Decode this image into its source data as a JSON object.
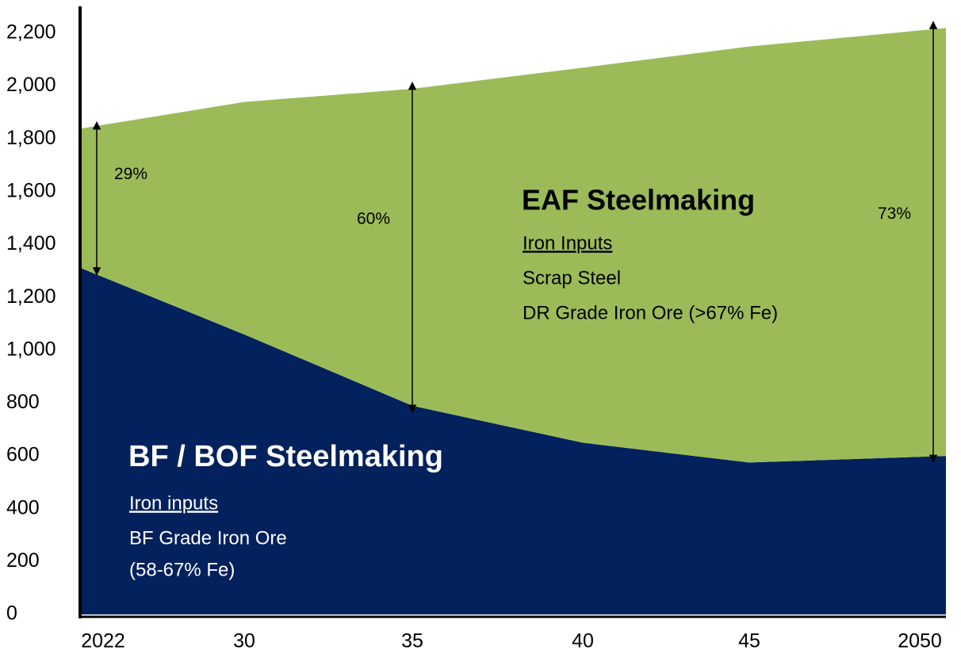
{
  "chart_data": {
    "type": "stacked_area",
    "x": [
      2022,
      2030,
      2035,
      2040,
      2045,
      2050
    ],
    "series": [
      {
        "name": "BF / BOF Steelmaking",
        "color": "#03215c",
        "values": [
          1310,
          1060,
          790,
          650,
          575,
          600
        ],
        "notes": [
          "Iron inputs",
          "BF Grade Iron Ore",
          "(58-67% Fe)"
        ]
      },
      {
        "name": "EAF Steelmaking",
        "color": "#9bbb59",
        "values": [
          530,
          880,
          1200,
          1420,
          1575,
          1620
        ],
        "notes": [
          "Iron Inputs",
          "Scrap Steel",
          "DR Grade Iron Ore (>67% Fe)"
        ]
      }
    ],
    "annotations": [
      {
        "label": "29%",
        "x": 2022
      },
      {
        "label": "60%",
        "x": 2035
      },
      {
        "label": "73%",
        "x": 2050
      }
    ],
    "xlim": [
      2022,
      2050
    ],
    "xticks": [
      {
        "value": 2022,
        "label": "2022"
      },
      {
        "value": 2030,
        "label": "30"
      },
      {
        "value": 2035,
        "label": "35"
      },
      {
        "value": 2040,
        "label": "40"
      },
      {
        "value": 2045,
        "label": "45"
      },
      2050
    ],
    "ylim": [
      0,
      2200
    ],
    "yticks": [
      0,
      200,
      400,
      600,
      800,
      {
        "value": 1000,
        "label": "1,000"
      },
      {
        "value": 1200,
        "label": "1,200"
      },
      {
        "value": 1400,
        "label": "1,400"
      },
      {
        "value": 1600,
        "label": "1,600"
      },
      {
        "value": 1800,
        "label": "1,800"
      },
      {
        "value": 2000,
        "label": "2,000"
      },
      {
        "value": 2200,
        "label": "2,200"
      }
    ]
  }
}
